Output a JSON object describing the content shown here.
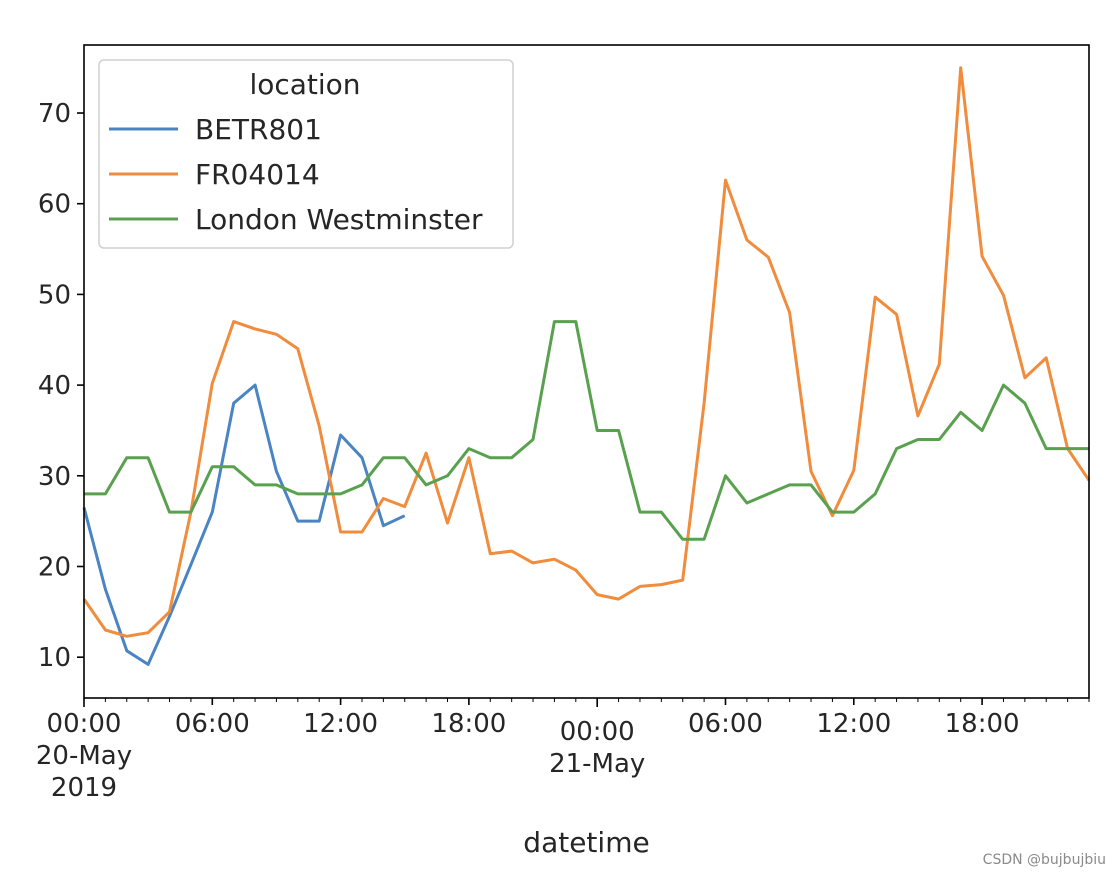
{
  "chart_data": {
    "type": "line",
    "xlabel": "datetime",
    "ylabel": "",
    "ylim": [
      5.5,
      77.5
    ],
    "xlim": [
      "2019-05-20 00:00",
      "2019-05-21 23:00"
    ],
    "yticks": [
      10,
      20,
      30,
      40,
      50,
      60,
      70
    ],
    "xticks": [
      {
        "x": "2019-05-20 00:00",
        "lines": [
          "00:00",
          "20-May",
          "2019"
        ]
      },
      {
        "x": "2019-05-20 06:00",
        "lines": [
          "06:00"
        ]
      },
      {
        "x": "2019-05-20 12:00",
        "lines": [
          "12:00"
        ]
      },
      {
        "x": "2019-05-20 18:00",
        "lines": [
          "18:00"
        ]
      },
      {
        "x": "2019-05-21 00:00",
        "lines": [
          "00:00",
          "21-May"
        ]
      },
      {
        "x": "2019-05-21 06:00",
        "lines": [
          "06:00"
        ]
      },
      {
        "x": "2019-05-21 12:00",
        "lines": [
          "12:00"
        ]
      },
      {
        "x": "2019-05-21 18:00",
        "lines": [
          "18:00"
        ]
      }
    ],
    "legend": {
      "title": "location",
      "placement": "upper-left"
    },
    "grid": false,
    "series": [
      {
        "name": "BETR801",
        "color": "#4a84c2",
        "x": [
          "2019-05-20 00:00",
          "2019-05-20 01:00",
          "2019-05-20 02:00",
          "2019-05-20 03:00",
          "2019-05-20 04:00",
          "2019-05-20 05:00",
          "2019-05-20 06:00",
          "2019-05-20 07:00",
          "2019-05-20 08:00",
          "2019-05-20 09:00",
          "2019-05-20 10:00",
          "2019-05-20 11:00",
          "2019-05-20 12:00",
          "2019-05-20 13:00",
          "2019-05-20 14:00",
          "2019-05-20 15:00"
        ],
        "values": [
          26.5,
          17.5,
          10.7,
          9.2,
          14.5,
          20.2,
          26.0,
          38.0,
          40.0,
          30.5,
          25.0,
          25.0,
          34.5,
          32.0,
          24.5,
          25.6
        ]
      },
      {
        "name": "FR04014",
        "color": "#f08c3c",
        "x": [
          "2019-05-20 00:00",
          "2019-05-20 01:00",
          "2019-05-20 02:00",
          "2019-05-20 03:00",
          "2019-05-20 04:00",
          "2019-05-20 05:00",
          "2019-05-20 06:00",
          "2019-05-20 07:00",
          "2019-05-20 08:00",
          "2019-05-20 09:00",
          "2019-05-20 10:00",
          "2019-05-20 11:00",
          "2019-05-20 12:00",
          "2019-05-20 13:00",
          "2019-05-20 14:00",
          "2019-05-20 15:00",
          "2019-05-20 16:00",
          "2019-05-20 17:00",
          "2019-05-20 18:00",
          "2019-05-20 19:00",
          "2019-05-20 20:00",
          "2019-05-20 21:00",
          "2019-05-20 22:00",
          "2019-05-20 23:00",
          "2019-05-21 00:00",
          "2019-05-21 01:00",
          "2019-05-21 02:00",
          "2019-05-21 03:00",
          "2019-05-21 04:00",
          "2019-05-21 05:00",
          "2019-05-21 06:00",
          "2019-05-21 07:00",
          "2019-05-21 08:00",
          "2019-05-21 09:00",
          "2019-05-21 10:00",
          "2019-05-21 11:00",
          "2019-05-21 12:00",
          "2019-05-21 13:00",
          "2019-05-21 14:00",
          "2019-05-21 15:00",
          "2019-05-21 16:00",
          "2019-05-21 17:00",
          "2019-05-21 18:00",
          "2019-05-21 19:00",
          "2019-05-21 20:00",
          "2019-05-21 21:00",
          "2019-05-21 22:00",
          "2019-05-21 23:00"
        ],
        "values": [
          16.4,
          13.0,
          12.3,
          12.7,
          15.0,
          26.0,
          40.2,
          47.0,
          46.2,
          45.6,
          44.0,
          35.5,
          23.8,
          23.8,
          27.5,
          26.6,
          32.5,
          24.8,
          32.0,
          21.4,
          21.7,
          20.4,
          20.8,
          19.6,
          16.9,
          16.4,
          17.8,
          18.0,
          18.5,
          38.0,
          62.6,
          56.0,
          54.1,
          48.0,
          30.5,
          25.6,
          30.6,
          49.7,
          47.8,
          36.6,
          42.3,
          75.0,
          54.2,
          49.9,
          40.8,
          43.0,
          33.0,
          29.5
        ]
      },
      {
        "name": "London Westminster",
        "color": "#59a14f",
        "x": [
          "2019-05-20 00:00",
          "2019-05-20 01:00",
          "2019-05-20 02:00",
          "2019-05-20 03:00",
          "2019-05-20 04:00",
          "2019-05-20 05:00",
          "2019-05-20 06:00",
          "2019-05-20 07:00",
          "2019-05-20 08:00",
          "2019-05-20 09:00",
          "2019-05-20 10:00",
          "2019-05-20 11:00",
          "2019-05-20 12:00",
          "2019-05-20 13:00",
          "2019-05-20 14:00",
          "2019-05-20 15:00",
          "2019-05-20 16:00",
          "2019-05-20 17:00",
          "2019-05-20 18:00",
          "2019-05-20 19:00",
          "2019-05-20 20:00",
          "2019-05-20 21:00",
          "2019-05-20 22:00",
          "2019-05-20 23:00",
          "2019-05-21 00:00",
          "2019-05-21 01:00",
          "2019-05-21 02:00",
          "2019-05-21 03:00",
          "2019-05-21 04:00",
          "2019-05-21 05:00",
          "2019-05-21 06:00",
          "2019-05-21 07:00",
          "2019-05-21 08:00",
          "2019-05-21 09:00",
          "2019-05-21 10:00",
          "2019-05-21 11:00",
          "2019-05-21 12:00",
          "2019-05-21 13:00",
          "2019-05-21 14:00",
          "2019-05-21 15:00",
          "2019-05-21 16:00",
          "2019-05-21 17:00",
          "2019-05-21 18:00",
          "2019-05-21 19:00",
          "2019-05-21 20:00",
          "2019-05-21 21:00",
          "2019-05-21 22:00",
          "2019-05-21 23:00"
        ],
        "values": [
          28.0,
          28.0,
          32.0,
          32.0,
          26.0,
          26.0,
          31.0,
          31.0,
          29.0,
          29.0,
          28.0,
          28.0,
          28.0,
          29.0,
          32.0,
          32.0,
          29.0,
          30.0,
          33.0,
          32.0,
          32.0,
          34.0,
          47.0,
          47.0,
          35.0,
          35.0,
          26.0,
          26.0,
          23.0,
          23.0,
          30.0,
          27.0,
          28.0,
          29.0,
          29.0,
          26.0,
          26.0,
          28.0,
          33.0,
          34.0,
          34.0,
          37.0,
          35.0,
          40.0,
          38.0,
          33.0,
          33.0,
          33.0
        ]
      }
    ]
  },
  "watermark": "CSDN @bujbujbiu"
}
